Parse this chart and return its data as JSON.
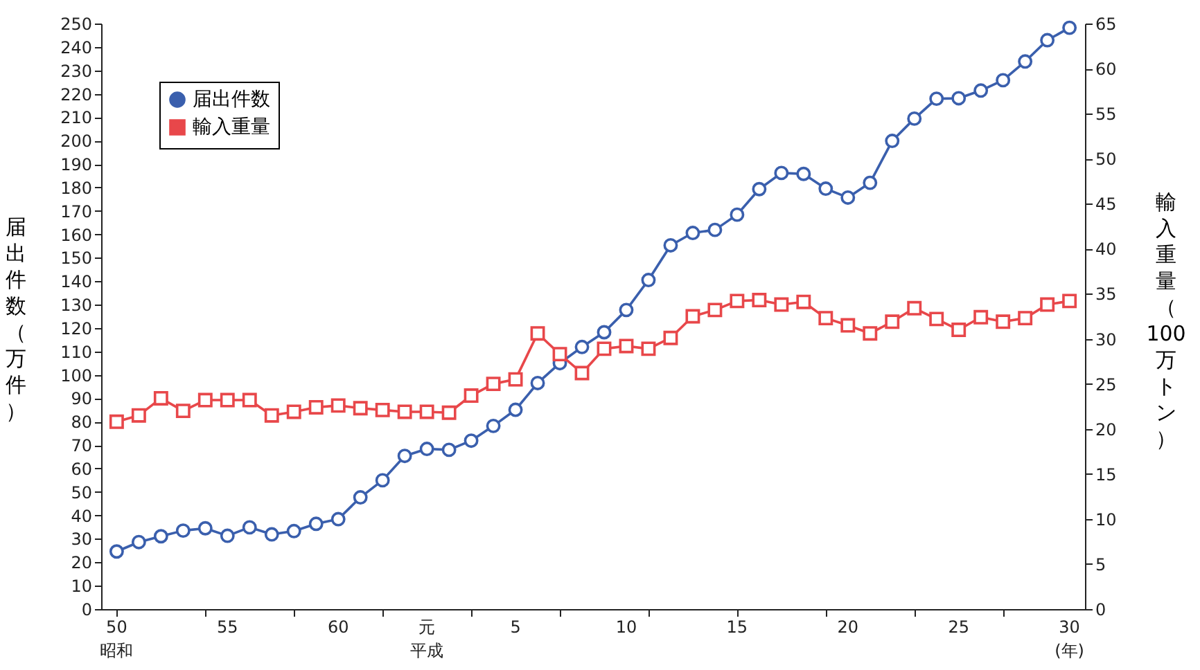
{
  "chart_data": {
    "type": "line",
    "categories": [
      "50昭和",
      null,
      null,
      null,
      null,
      "55",
      null,
      null,
      null,
      null,
      "60",
      null,
      null,
      null,
      "元平成",
      null,
      null,
      null,
      "5",
      null,
      null,
      null,
      null,
      "10",
      null,
      null,
      null,
      null,
      "15",
      null,
      null,
      null,
      null,
      "20",
      null,
      null,
      null,
      null,
      "25",
      null,
      null,
      null,
      null,
      "30(年)"
    ],
    "ylabel": "届出件数（万件）",
    "y2label": "輸入重量（100万トン）",
    "ylim": [
      0,
      250
    ],
    "yticks": [
      0,
      10,
      20,
      30,
      40,
      50,
      60,
      70,
      80,
      90,
      100,
      110,
      120,
      130,
      140,
      150,
      160,
      170,
      180,
      190,
      200,
      210,
      220,
      230,
      240,
      250
    ],
    "y2lim": [
      0,
      65
    ],
    "y2ticks": [
      0,
      5,
      10,
      15,
      20,
      25,
      30,
      35,
      40,
      45,
      50,
      55,
      60,
      65
    ],
    "legend": "top left",
    "grid": false,
    "series": [
      {
        "name": "届出件数",
        "color": "#3a5fad",
        "marker": "circle",
        "values": [
          24.6,
          28.6,
          31.1,
          33.5,
          34.5,
          31.3,
          34.9,
          31.9,
          33.3,
          36.4,
          38.4,
          47.7,
          55,
          65.4,
          68.4,
          68,
          71.9,
          78.2,
          85.1,
          96.5,
          105,
          111.9,
          118.2,
          127.7,
          140.5,
          155.3,
          160.6,
          161.9,
          168.4,
          179.3,
          186.2,
          185.8,
          179.5,
          175.7,
          182,
          199.9,
          209.4,
          217.9,
          218.1,
          221.4,
          225.8,
          233.8,
          242.9,
          248.2
        ]
      },
      {
        "name": "輸入重量",
        "color": "#e8474a",
        "marker": "square",
        "axis": "y2",
        "values": [
          20.8,
          21.5,
          23.4,
          22.0,
          23.2,
          23.2,
          23.2,
          21.5,
          21.9,
          22.4,
          22.6,
          22.3,
          22.1,
          21.9,
          21.9,
          21.8,
          23.7,
          25.0,
          25.5,
          30.6,
          28.3,
          26.2,
          28.9,
          29.2,
          28.9,
          30.1,
          32.5,
          33.2,
          34.2,
          34.3,
          33.8,
          34.1,
          32.3,
          31.5,
          30.6,
          31.9,
          33.4,
          32.2,
          31.0,
          32.4,
          31.9,
          32.3,
          33.8,
          34.2
        ]
      }
    ]
  }
}
